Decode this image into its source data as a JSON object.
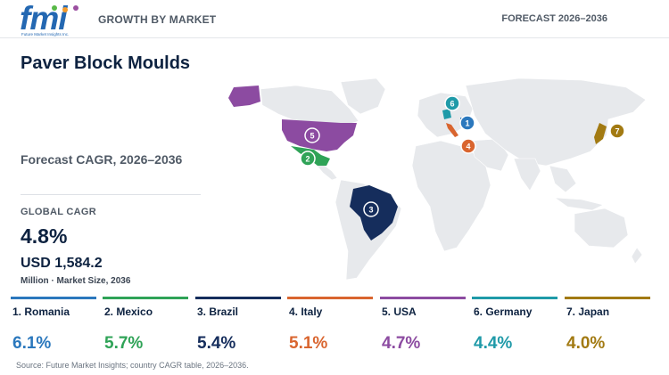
{
  "header": {
    "logo_text": "fmi",
    "logo_tagline": "Future Market Insights Inc.",
    "left_label": "GROWTH BY MARKET",
    "right_label": "FORECAST 2026–2036"
  },
  "title": "Paver Block Moulds",
  "forecast_label": "Forecast CAGR, 2026–2036",
  "global": {
    "label": "GLOBAL CAGR",
    "value": "4.8%",
    "market_size": "USD 1,584.2",
    "market_size_sub": "Million · Market Size, 2036"
  },
  "countries": [
    {
      "rank": "1",
      "name": "1. Romania",
      "cagr": "6.1%",
      "color": "#2b78bd"
    },
    {
      "rank": "2",
      "name": "2. Mexico",
      "cagr": "5.7%",
      "color": "#2fa357"
    },
    {
      "rank": "3",
      "name": "3. Brazil",
      "cagr": "5.4%",
      "color": "#152d5c"
    },
    {
      "rank": "4",
      "name": "4. Italy",
      "cagr": "5.1%",
      "color": "#d9652f"
    },
    {
      "rank": "5",
      "name": "5. USA",
      "cagr": "4.7%",
      "color": "#8c4ba1"
    },
    {
      "rank": "6",
      "name": "6. Germany",
      "cagr": "4.4%",
      "color": "#1f9aa8"
    },
    {
      "rank": "7",
      "name": "7. Japan",
      "cagr": "4.0%",
      "color": "#a27a12"
    }
  ],
  "source": "Source: Future Market Insights; country CAGR table, 2026–2036.",
  "colors": {
    "land": "#e7e9ec",
    "navy": "#0d2240",
    "muted": "#505a66"
  }
}
